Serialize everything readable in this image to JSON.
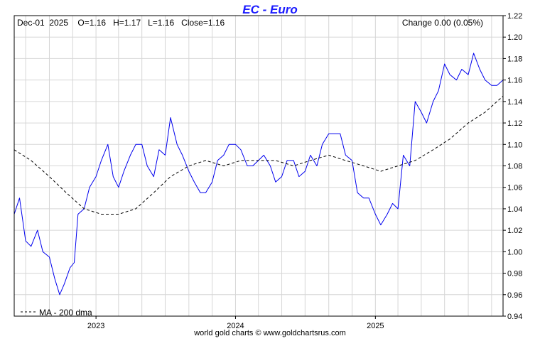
{
  "chart_data": {
    "type": "line",
    "title": "EC  -  Euro",
    "info_left": "Dec-01  2025    O=1.16   H=1.17   L=1.16   Close=1.16",
    "info_right": "Change 0.00 (0.05%)",
    "footer": "world gold charts © www.goldchartsrus.com",
    "colors": {
      "price": "#0000ee",
      "ma": "#000000",
      "title": "#1a1aff",
      "grid": "#d6d6d6"
    },
    "grid": true,
    "ylim": [
      0.94,
      1.22
    ],
    "y_ticks": [
      "1.22",
      "1.20",
      "1.18",
      "1.16",
      "1.14",
      "1.12",
      "1.10",
      "1.08",
      "1.06",
      "1.04",
      "1.02",
      "1.00",
      "0.98",
      "0.96",
      "0.94"
    ],
    "x_range": [
      "2022-06-01",
      "2025-12-01"
    ],
    "x_ticks": [
      {
        "date": "2023-01-01",
        "label": "2023"
      },
      {
        "date": "2024-01-01",
        "label": "2024"
      },
      {
        "date": "2025-01-01",
        "label": "2025"
      }
    ],
    "x_minor_gridlines": [
      "2022-07-01",
      "2022-09-01",
      "2022-11-01",
      "2023-03-01",
      "2023-05-01",
      "2023-07-01",
      "2023-09-01",
      "2023-11-01",
      "2024-03-01",
      "2024-05-01",
      "2024-07-01",
      "2024-09-01",
      "2024-11-01",
      "2025-03-01",
      "2025-05-01",
      "2025-07-01",
      "2025-09-01",
      "2025-11-01"
    ],
    "legend": {
      "position": "bottom-left",
      "label": "MA - 200 dma"
    },
    "series": [
      {
        "name": "EC",
        "style": "solid",
        "points": [
          [
            "2022-06-01",
            1.035
          ],
          [
            "2022-06-15",
            1.05
          ],
          [
            "2022-07-01",
            1.01
          ],
          [
            "2022-07-15",
            1.005
          ],
          [
            "2022-08-01",
            1.02
          ],
          [
            "2022-08-15",
            1.0
          ],
          [
            "2022-09-01",
            0.995
          ],
          [
            "2022-09-15",
            0.975
          ],
          [
            "2022-09-28",
            0.96
          ],
          [
            "2022-10-10",
            0.97
          ],
          [
            "2022-10-25",
            0.985
          ],
          [
            "2022-11-05",
            0.99
          ],
          [
            "2022-11-15",
            1.035
          ],
          [
            "2022-12-01",
            1.04
          ],
          [
            "2022-12-15",
            1.06
          ],
          [
            "2023-01-01",
            1.07
          ],
          [
            "2023-01-15",
            1.085
          ],
          [
            "2023-02-01",
            1.1
          ],
          [
            "2023-02-15",
            1.07
          ],
          [
            "2023-03-01",
            1.06
          ],
          [
            "2023-03-15",
            1.075
          ],
          [
            "2023-04-01",
            1.09
          ],
          [
            "2023-04-15",
            1.1
          ],
          [
            "2023-05-01",
            1.1
          ],
          [
            "2023-05-15",
            1.08
          ],
          [
            "2023-06-01",
            1.07
          ],
          [
            "2023-06-15",
            1.095
          ],
          [
            "2023-07-01",
            1.09
          ],
          [
            "2023-07-15",
            1.125
          ],
          [
            "2023-08-01",
            1.1
          ],
          [
            "2023-08-15",
            1.09
          ],
          [
            "2023-09-01",
            1.075
          ],
          [
            "2023-09-15",
            1.065
          ],
          [
            "2023-10-01",
            1.055
          ],
          [
            "2023-10-15",
            1.055
          ],
          [
            "2023-11-01",
            1.065
          ],
          [
            "2023-11-15",
            1.085
          ],
          [
            "2023-12-01",
            1.09
          ],
          [
            "2023-12-15",
            1.1
          ],
          [
            "2024-01-01",
            1.1
          ],
          [
            "2024-01-15",
            1.095
          ],
          [
            "2024-02-01",
            1.08
          ],
          [
            "2024-02-15",
            1.08
          ],
          [
            "2024-03-01",
            1.085
          ],
          [
            "2024-03-15",
            1.09
          ],
          [
            "2024-04-01",
            1.08
          ],
          [
            "2024-04-15",
            1.065
          ],
          [
            "2024-05-01",
            1.07
          ],
          [
            "2024-05-15",
            1.085
          ],
          [
            "2024-06-01",
            1.085
          ],
          [
            "2024-06-15",
            1.07
          ],
          [
            "2024-07-01",
            1.075
          ],
          [
            "2024-07-15",
            1.09
          ],
          [
            "2024-08-01",
            1.08
          ],
          [
            "2024-08-15",
            1.1
          ],
          [
            "2024-09-01",
            1.11
          ],
          [
            "2024-09-15",
            1.11
          ],
          [
            "2024-10-01",
            1.11
          ],
          [
            "2024-10-15",
            1.09
          ],
          [
            "2024-11-01",
            1.085
          ],
          [
            "2024-11-15",
            1.055
          ],
          [
            "2024-12-01",
            1.05
          ],
          [
            "2024-12-15",
            1.05
          ],
          [
            "2025-01-01",
            1.035
          ],
          [
            "2025-01-15",
            1.025
          ],
          [
            "2025-02-01",
            1.035
          ],
          [
            "2025-02-15",
            1.045
          ],
          [
            "2025-03-01",
            1.04
          ],
          [
            "2025-03-15",
            1.09
          ],
          [
            "2025-04-01",
            1.08
          ],
          [
            "2025-04-15",
            1.14
          ],
          [
            "2025-05-01",
            1.13
          ],
          [
            "2025-05-15",
            1.12
          ],
          [
            "2025-06-01",
            1.14
          ],
          [
            "2025-06-15",
            1.15
          ],
          [
            "2025-07-01",
            1.175
          ],
          [
            "2025-07-15",
            1.165
          ],
          [
            "2025-08-01",
            1.16
          ],
          [
            "2025-08-15",
            1.17
          ],
          [
            "2025-09-01",
            1.165
          ],
          [
            "2025-09-15",
            1.185
          ],
          [
            "2025-10-01",
            1.17
          ],
          [
            "2025-10-15",
            1.16
          ],
          [
            "2025-11-01",
            1.155
          ],
          [
            "2025-11-15",
            1.155
          ],
          [
            "2025-12-01",
            1.16
          ]
        ]
      },
      {
        "name": "MA - 200 dma",
        "style": "dashed",
        "points": [
          [
            "2022-06-01",
            1.095
          ],
          [
            "2022-07-15",
            1.085
          ],
          [
            "2022-09-01",
            1.07
          ],
          [
            "2022-10-15",
            1.055
          ],
          [
            "2022-12-01",
            1.04
          ],
          [
            "2023-01-15",
            1.035
          ],
          [
            "2023-03-01",
            1.035
          ],
          [
            "2023-04-15",
            1.04
          ],
          [
            "2023-06-01",
            1.055
          ],
          [
            "2023-07-15",
            1.07
          ],
          [
            "2023-09-01",
            1.08
          ],
          [
            "2023-10-15",
            1.085
          ],
          [
            "2023-12-01",
            1.08
          ],
          [
            "2024-01-15",
            1.085
          ],
          [
            "2024-03-01",
            1.085
          ],
          [
            "2024-04-15",
            1.085
          ],
          [
            "2024-06-01",
            1.08
          ],
          [
            "2024-07-15",
            1.085
          ],
          [
            "2024-09-01",
            1.09
          ],
          [
            "2024-10-15",
            1.085
          ],
          [
            "2024-12-01",
            1.08
          ],
          [
            "2025-01-15",
            1.075
          ],
          [
            "2025-03-01",
            1.08
          ],
          [
            "2025-04-15",
            1.085
          ],
          [
            "2025-06-01",
            1.095
          ],
          [
            "2025-07-15",
            1.105
          ],
          [
            "2025-09-01",
            1.12
          ],
          [
            "2025-10-15",
            1.13
          ],
          [
            "2025-12-01",
            1.145
          ]
        ]
      }
    ]
  }
}
